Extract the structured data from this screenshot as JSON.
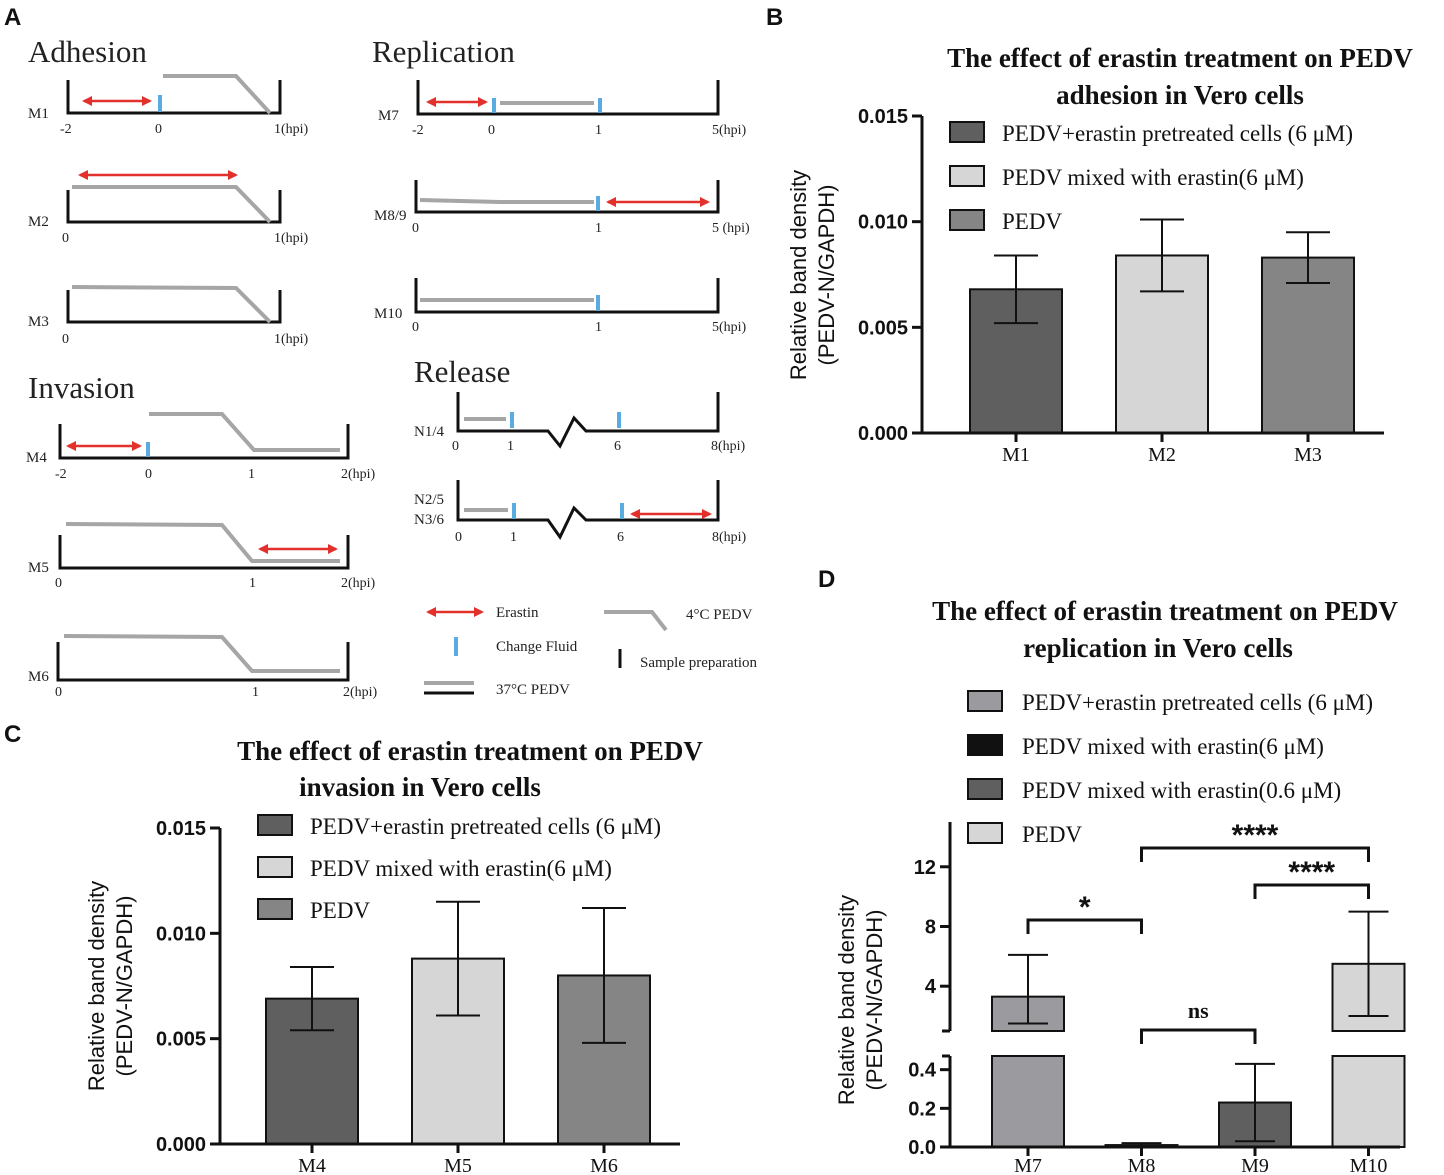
{
  "panel_labels": {
    "a": "A",
    "b": "B",
    "c": "C",
    "d": "D"
  },
  "schematic": {
    "sections": {
      "adhesion": "Adhesion",
      "invasion": "Invasion",
      "replication": "Replication",
      "release": "Release"
    },
    "rows": {
      "M1": {
        "label": "M1",
        "ticks": [
          "-2",
          "0",
          "1(hpi)"
        ]
      },
      "M2": {
        "label": "M2",
        "ticks": [
          "0",
          "1(hpi)"
        ]
      },
      "M3": {
        "label": "M3",
        "ticks": [
          "0",
          "1(hpi)"
        ]
      },
      "M4": {
        "label": "M4",
        "ticks": [
          "-2",
          "0",
          "1",
          "2(hpi)"
        ]
      },
      "M5": {
        "label": "M5",
        "ticks": [
          "0",
          "1",
          "2(hpi)"
        ]
      },
      "M6": {
        "label": "M6",
        "ticks": [
          "0",
          "1",
          "2(hpi)"
        ]
      },
      "M7": {
        "label": "M7",
        "ticks": [
          "-2",
          "0",
          "1",
          "5(hpi)"
        ]
      },
      "M89": {
        "label": "M8/9",
        "ticks": [
          "0",
          "1",
          "5 (hpi)"
        ]
      },
      "M10": {
        "label": "M10",
        "ticks": [
          "0",
          "1",
          "5(hpi)"
        ]
      },
      "N14": {
        "label": "N1/4",
        "ticks": [
          "0",
          "1",
          "6",
          "8(hpi)"
        ]
      },
      "N25": {
        "label": "N2/5",
        "label2": "N3/6",
        "ticks": [
          "0",
          "1",
          "6",
          "8(hpi)"
        ]
      }
    },
    "legend": {
      "erastin": "Erastin",
      "change_fluid": "Change Fluid",
      "pedv4": "4°C PEDV",
      "sample": "Sample preparation",
      "pedv37": "37°C PEDV"
    },
    "colors": {
      "erastin": "#e2312b",
      "fluid": "#5aace0",
      "pedv": "#a6a6a6",
      "axis": "#111111"
    }
  },
  "chart_data": [
    {
      "panel": "B",
      "type": "bar",
      "title_lines": [
        "The effect of erastin treatment on PEDV",
        "adhesion in Vero cells"
      ],
      "ylabel_lines": [
        "Relative band density",
        "(PEDV-N/GAPDH)"
      ],
      "xlabel": "",
      "categories": [
        "M1",
        "M2",
        "M3"
      ],
      "values": [
        0.0068,
        0.0084,
        0.0083
      ],
      "errors": [
        0.0016,
        0.0017,
        0.0012
      ],
      "colors": [
        "#5f5f5f",
        "#d6d6d6",
        "#858585"
      ],
      "legend": [
        {
          "label": "PEDV+erastin pretreated cells (6 μM)",
          "color": "#5f5f5f"
        },
        {
          "label": "PEDV mixed with erastin(6 μM)",
          "color": "#d6d6d6"
        },
        {
          "label": "PEDV",
          "color": "#858585"
        }
      ],
      "ylim": [
        0,
        0.015
      ],
      "yticks": [
        "0.000",
        "0.005",
        "0.010",
        "0.015"
      ]
    },
    {
      "panel": "C",
      "type": "bar",
      "title_lines": [
        "The effect of erastin treatment on PEDV",
        "invasion in Vero cells"
      ],
      "ylabel_lines": [
        "Relative band density",
        "(PEDV-N/GAPDH)"
      ],
      "xlabel": "",
      "categories": [
        "M4",
        "M5",
        "M6"
      ],
      "values": [
        0.0069,
        0.0088,
        0.008
      ],
      "errors": [
        0.0015,
        0.0027,
        0.0032
      ],
      "colors": [
        "#5f5f5f",
        "#d6d6d6",
        "#858585"
      ],
      "legend": [
        {
          "label": "PEDV+erastin pretreated cells (6 μM)",
          "color": "#5f5f5f"
        },
        {
          "label": "PEDV mixed with erastin(6 μM)",
          "color": "#d6d6d6"
        },
        {
          "label": "PEDV",
          "color": "#858585"
        }
      ],
      "ylim": [
        0,
        0.015
      ],
      "yticks": [
        "0.000",
        "0.005",
        "0.010",
        "0.015"
      ]
    },
    {
      "panel": "D",
      "type": "bar",
      "title_lines": [
        "The effect of erastin treatment on PEDV",
        "replication in Vero cells"
      ],
      "ylabel_lines": [
        "Relative band density",
        "(PEDV-N/GAPDH)"
      ],
      "xlabel": "",
      "broken_axis": true,
      "categories": [
        "M7",
        "M8",
        "M9",
        "M10"
      ],
      "values": [
        3.3,
        0.01,
        0.23,
        5.5
      ],
      "errors": [
        2.8,
        0.01,
        0.2,
        3.5
      ],
      "colors": [
        "#9b9b9f",
        "#111111",
        "#5f5f5f",
        "#d6d6d6"
      ],
      "legend": [
        {
          "label": "PEDV+erastin pretreated cells (6 μM)",
          "color": "#9b9b9f"
        },
        {
          "label": "PEDV mixed with erastin(6 μM)",
          "color": "#111111"
        },
        {
          "label": "PEDV mixed with erastin(0.6 μM)",
          "color": "#5f5f5f"
        },
        {
          "label": "PEDV",
          "color": "#d6d6d6"
        }
      ],
      "ylim_lower": [
        0,
        0.45
      ],
      "ylim_upper": [
        1.2,
        15
      ],
      "yticks_lower": [
        "0.0",
        "0.2",
        "0.4"
      ],
      "yticks_upper": [
        "4",
        "8",
        "12"
      ],
      "significance": [
        {
          "from": "M7",
          "to": "M8",
          "label": "*"
        },
        {
          "from": "M8",
          "to": "M9",
          "label": "ns"
        },
        {
          "from": "M8",
          "to": "M10",
          "label": "****"
        },
        {
          "from": "M9",
          "to": "M10",
          "label": "****"
        }
      ]
    }
  ]
}
